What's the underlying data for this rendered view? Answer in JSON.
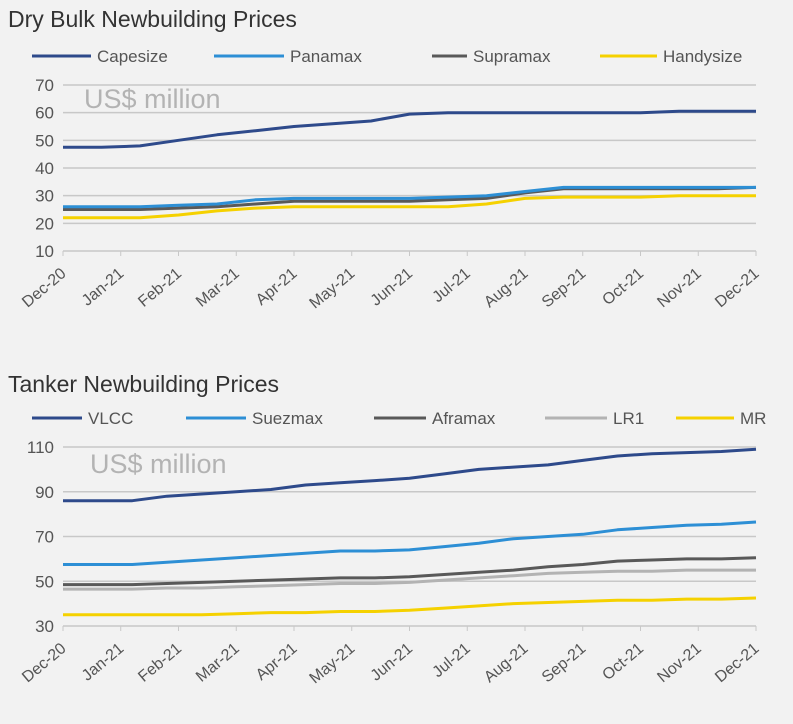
{
  "chart_data": [
    {
      "type": "line",
      "title": "Dry Bulk Newbuilding Prices",
      "unit_label": "US$ million",
      "xlabel": "",
      "ylabel": "",
      "ylim": [
        10,
        70
      ],
      "yticks": [
        10,
        20,
        30,
        40,
        50,
        60,
        70
      ],
      "grid": true,
      "legend": "top",
      "x_tick_labels": [
        "Dec-20",
        "Jan-21",
        "Feb-21",
        "Mar-21",
        "Apr-21",
        "May-21",
        "Jun-21",
        "Jul-21",
        "Aug-21",
        "Sep-21",
        "Oct-21",
        "Nov-21",
        "Dec-21"
      ],
      "series": [
        {
          "name": "Capesize",
          "color": "#2e4a8b",
          "values": [
            47.5,
            47.5,
            48,
            50,
            52,
            53.5,
            55,
            56,
            57,
            59.5,
            60,
            60,
            60,
            60,
            60,
            60,
            60.5,
            60.5,
            60.5
          ]
        },
        {
          "name": "Panamax",
          "color": "#2d8fd5",
          "values": [
            26,
            26,
            26,
            26.5,
            27,
            28.5,
            29,
            29,
            29,
            29,
            29.5,
            30,
            31.5,
            33,
            33,
            33,
            33,
            33,
            33
          ]
        },
        {
          "name": "Supramax",
          "color": "#595959",
          "values": [
            25,
            25,
            25,
            25.5,
            26,
            27,
            28,
            28,
            28,
            28,
            28.5,
            29,
            31,
            32.5,
            32.5,
            32.5,
            32.5,
            32.5,
            33
          ]
        },
        {
          "name": "Handysize",
          "color": "#f5d100",
          "values": [
            22,
            22,
            22,
            23,
            24.5,
            25.5,
            26,
            26,
            26,
            26,
            26,
            27,
            29,
            29.5,
            29.5,
            29.5,
            30,
            30,
            30
          ]
        }
      ]
    },
    {
      "type": "line",
      "title": "Tanker Newbuilding Prices",
      "unit_label": "US$ million",
      "xlabel": "",
      "ylabel": "",
      "ylim": [
        30,
        110
      ],
      "yticks": [
        30,
        50,
        70,
        90,
        110
      ],
      "grid": true,
      "legend": "top",
      "x_tick_labels": [
        "Dec-20",
        "Jan-21",
        "Feb-21",
        "Mar-21",
        "Apr-21",
        "May-21",
        "Jun-21",
        "Jul-21",
        "Aug-21",
        "Sep-21",
        "Oct-21",
        "Nov-21",
        "Dec-21"
      ],
      "series": [
        {
          "name": "VLCC",
          "color": "#2e4a8b",
          "values": [
            86,
            86,
            86,
            88,
            89,
            90,
            91,
            93,
            94,
            95,
            96,
            98,
            100,
            101,
            102,
            104,
            106,
            107,
            107.5,
            108,
            109
          ]
        },
        {
          "name": "Suezmax",
          "color": "#2d8fd5",
          "values": [
            57.5,
            57.5,
            57.5,
            58.5,
            59.5,
            60.5,
            61.5,
            62.5,
            63.5,
            63.5,
            64,
            65.5,
            67,
            69,
            70,
            71,
            73,
            74,
            75,
            75.5,
            76.5
          ]
        },
        {
          "name": "Aframax",
          "color": "#595959",
          "values": [
            48.5,
            48.5,
            48.5,
            49,
            49.5,
            50,
            50.5,
            51,
            51.5,
            51.5,
            52,
            53,
            54,
            55,
            56.5,
            57.5,
            59,
            59.5,
            60,
            60,
            60.5
          ]
        },
        {
          "name": "LR1",
          "color": "#b3b3b3",
          "values": [
            46.5,
            46.5,
            46.5,
            47,
            47,
            47.5,
            48,
            48.5,
            49,
            49,
            49.5,
            50.5,
            51.5,
            52.5,
            53.5,
            54,
            54.5,
            54.5,
            55,
            55,
            55
          ]
        },
        {
          "name": "MR",
          "color": "#f5d100",
          "values": [
            35,
            35,
            35,
            35,
            35,
            35.5,
            36,
            36,
            36.5,
            36.5,
            37,
            38,
            39,
            40,
            40.5,
            41,
            41.5,
            41.5,
            42,
            42,
            42.5
          ]
        }
      ]
    }
  ]
}
